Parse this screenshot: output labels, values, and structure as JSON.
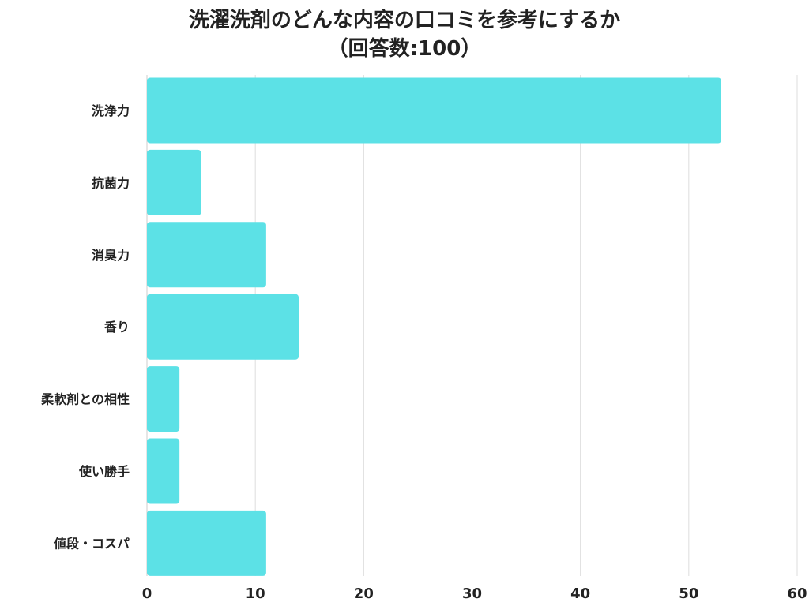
{
  "chart_data": {
    "type": "bar",
    "orientation": "horizontal",
    "title": [
      "洗濯洗剤のどんな内容の口コミを参考にするか",
      "（回答数:100）"
    ],
    "categories": [
      "洗浄力",
      "抗菌力",
      "消臭力",
      "香り",
      "柔軟剤との相性",
      "使い勝手",
      "値段・コスパ"
    ],
    "values": [
      53,
      5,
      11,
      14,
      3,
      3,
      11
    ],
    "xlim": [
      0,
      60
    ],
    "xticks": [
      0,
      10,
      20,
      30,
      40,
      50,
      60
    ],
    "grid": true,
    "bar_color": "#5ce1e6"
  }
}
